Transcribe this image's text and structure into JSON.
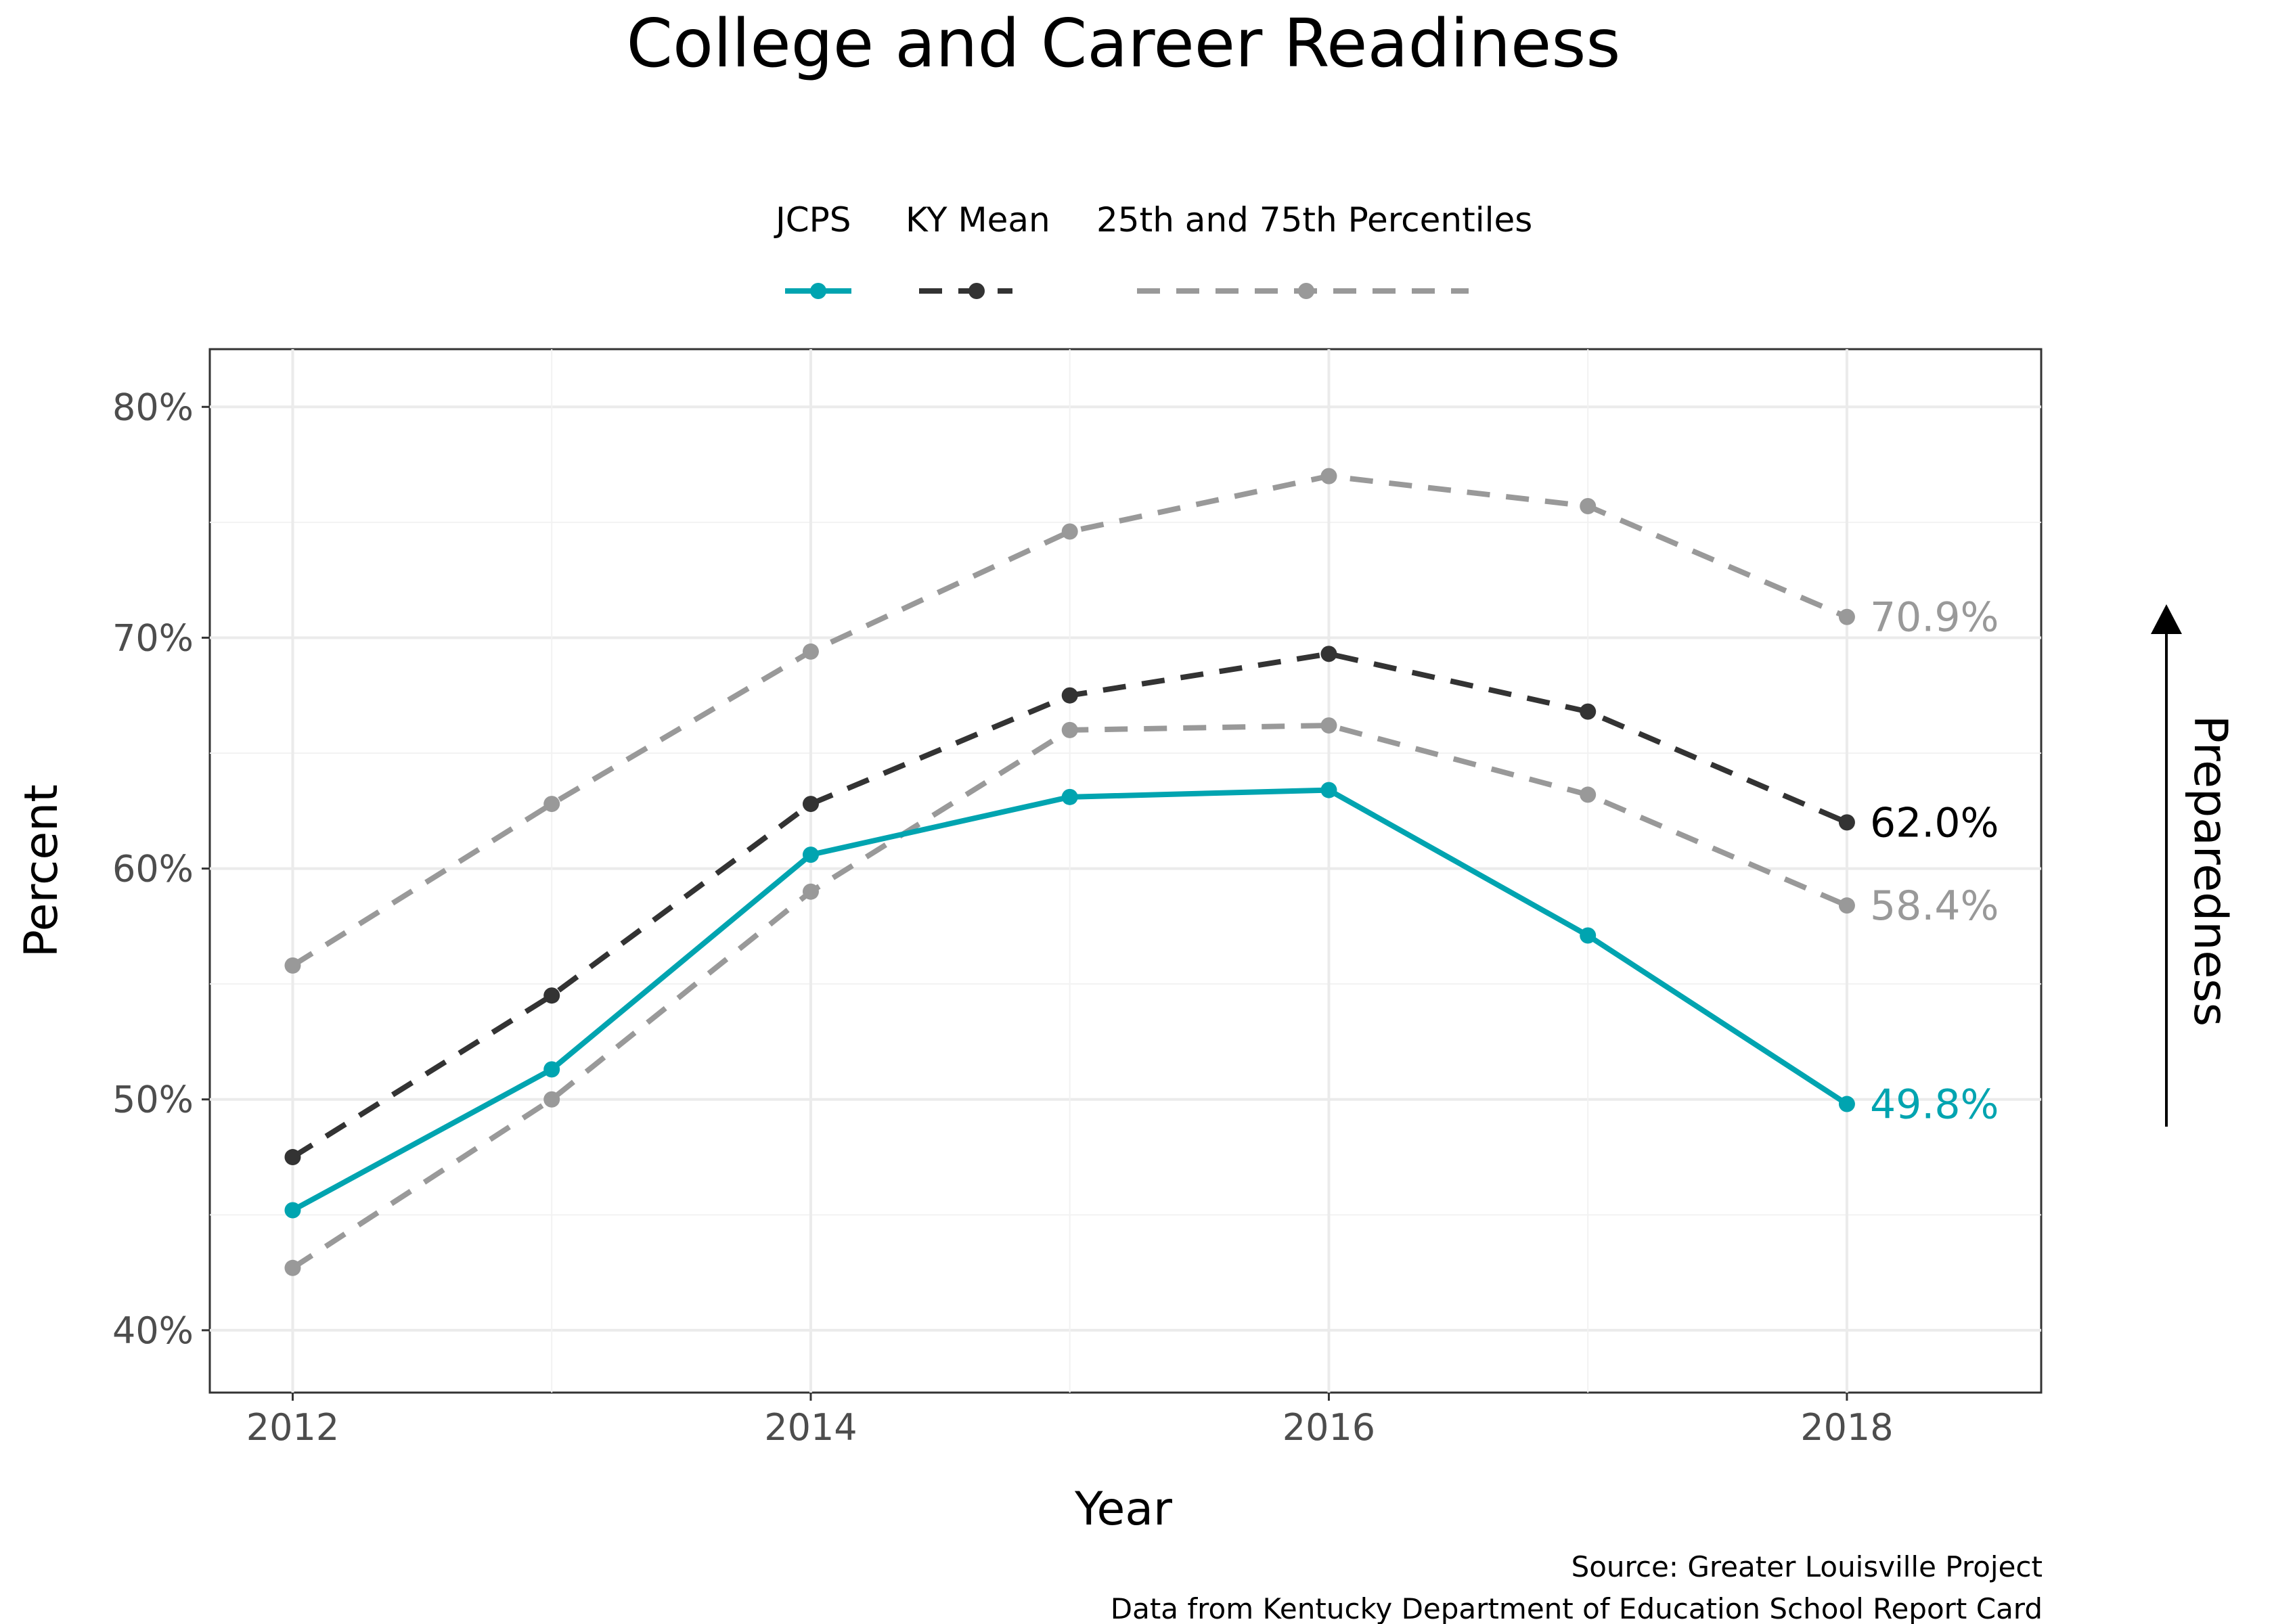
{
  "chart_data": {
    "type": "line",
    "title": "College and Career Readiness",
    "xlabel": "Year",
    "ylabel": "Percent",
    "side_annotation": "Preparedness",
    "x": [
      2012,
      2013,
      2014,
      2015,
      2016,
      2017,
      2018
    ],
    "x_ticks": [
      2012,
      2014,
      2016,
      2018
    ],
    "x_tick_labels": [
      "2012",
      "2014",
      "2016",
      "2018"
    ],
    "xlim": [
      2011.68,
      2018.75
    ],
    "ylim": [
      37.3,
      82.5
    ],
    "y_ticks": [
      40,
      50,
      60,
      70,
      80
    ],
    "y_tick_labels": [
      "40%",
      "50%",
      "60%",
      "70%",
      "80%"
    ],
    "grid": true,
    "legend_position": "top",
    "legend": [
      {
        "label": "JCPS",
        "series": "jcps"
      },
      {
        "label": "KY Mean",
        "series": "ky_mean"
      },
      {
        "label": "25th and 75th Percentiles",
        "series": "p75"
      }
    ],
    "series": [
      {
        "id": "p75",
        "values": [
          55.8,
          62.8,
          69.4,
          74.6,
          77.0,
          75.7,
          70.9
        ],
        "color": "#999999",
        "dashed": true,
        "end_label": "70.9%"
      },
      {
        "id": "p25",
        "values": [
          42.7,
          50.0,
          59.0,
          66.0,
          66.2,
          63.2,
          58.4
        ],
        "color": "#999999",
        "dashed": true,
        "end_label": "58.4%"
      },
      {
        "id": "ky_mean",
        "name": "KY Mean",
        "values": [
          47.5,
          54.5,
          62.8,
          67.5,
          69.3,
          66.8,
          62.0
        ],
        "color": "#333333",
        "dashed": true,
        "end_label": "62.0%",
        "end_label_color": "#000000"
      },
      {
        "id": "jcps",
        "name": "JCPS",
        "values": [
          45.2,
          51.3,
          60.6,
          63.1,
          63.4,
          57.1,
          49.8
        ],
        "color": "#00a4b0",
        "dashed": false,
        "end_label": "49.8%"
      }
    ]
  },
  "caption": {
    "source": "Source: Greater Louisville Project",
    "data_from": "Data from Kentucky Department of Education School Report Card"
  }
}
